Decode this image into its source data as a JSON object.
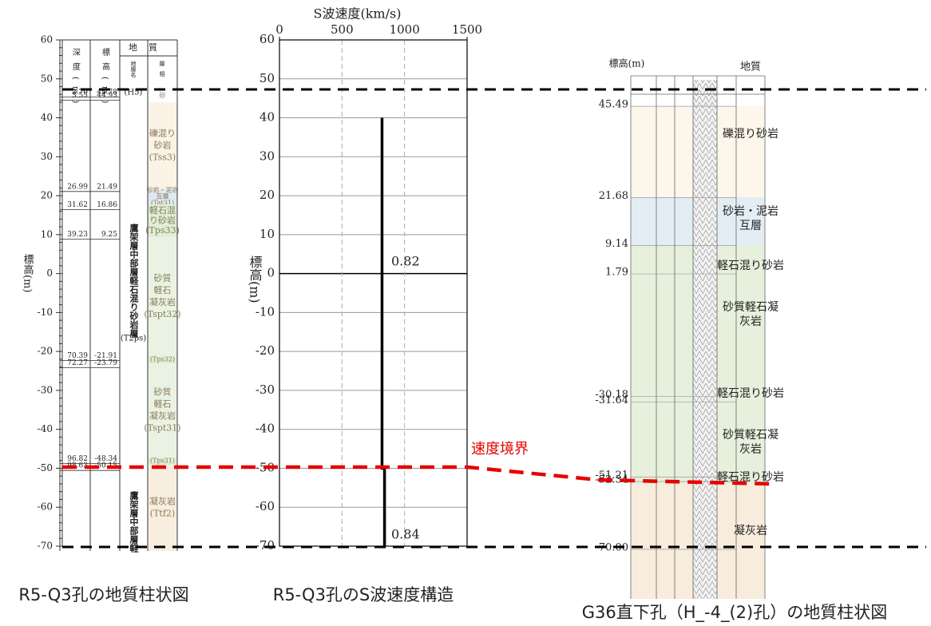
{
  "chart_data": {
    "type": "line",
    "title": "S波速度(km/s)",
    "y_label": "標高(m)",
    "xlim": [
      0,
      1500
    ],
    "xticks": [
      0,
      500,
      1000,
      1500
    ],
    "ylim": [
      -70,
      60
    ],
    "yticks": [
      60,
      50,
      40,
      30,
      20,
      10,
      0,
      -10,
      -20,
      -30,
      -40,
      -50,
      -60,
      -70
    ],
    "grid": true,
    "series": [
      {
        "color": "#000000",
        "x": [
          820,
          820,
          840,
          840
        ],
        "values": [
          40,
          -50,
          -50,
          -70
        ]
      }
    ],
    "annotations": [
      "0.82",
      "0.84"
    ]
  },
  "boundary_label": "速度境界",
  "left_log": {
    "axis_label": "標高(m)",
    "ylim": [
      -70,
      60
    ],
    "yticks": [
      60,
      50,
      40,
      30,
      20,
      10,
      0,
      -10,
      -20,
      -30,
      -40,
      -50,
      -60,
      -70
    ],
    "headers": {
      "depth": "深度(m)",
      "elevation": "標高(m)",
      "geology": "地質",
      "formation": "地層名",
      "facies": "層相"
    },
    "rows": [
      {
        "depth": "2.70",
        "elevation": "45.78"
      },
      {
        "depth": "3.55",
        "elevation": "44.93"
      },
      {
        "depth": "26.99",
        "elevation": "21.49"
      },
      {
        "depth": "31.62",
        "elevation": "16.86"
      },
      {
        "depth": "39.23",
        "elevation": "9.25"
      },
      {
        "depth": "70.39",
        "elevation": "-21.91"
      },
      {
        "depth": "72.27",
        "elevation": "-23.79"
      },
      {
        "depth": "96.82",
        "elevation": "-48.34"
      },
      {
        "depth": "98.63",
        "elevation": "-50.15"
      }
    ],
    "formations": [
      "(H5)",
      "鷹架層中部層軽石混り砂岩層",
      "(T2ps)",
      "鷹架層中部層軽"
    ],
    "layers": [
      {
        "color": "#ffffff",
        "lines": [
          "砂"
        ]
      },
      {
        "color": "#fbf3e6",
        "lines": [
          "礫混り",
          "砂岩",
          "(Tss3)"
        ]
      },
      {
        "color": "#dfe9f1",
        "lines": [
          "砂岩・泥岩",
          "互層",
          "(Tat31)"
        ]
      },
      {
        "color": "#dfeed6",
        "lines": [
          "軽石混",
          "り砂岩",
          "(Tps33)"
        ]
      },
      {
        "color": "#eaf3e3",
        "lines": [
          "砂質",
          "軽石",
          "凝灰岩",
          "(Tspt32)"
        ]
      },
      {
        "color": "#dfeed6",
        "lines": [
          "(Tps32)"
        ]
      },
      {
        "color": "#eaf3e3",
        "lines": [
          "砂質",
          "軽石",
          "凝灰岩",
          "(Tspt31)"
        ]
      },
      {
        "color": "#dfeed6",
        "lines": [
          "(Tps31)"
        ]
      },
      {
        "color": "#f8eedf",
        "lines": [
          "凝灰岩",
          "(Ttf2)"
        ]
      }
    ]
  },
  "right_log": {
    "header_elevation": "標高(m)",
    "header_geology": "地質",
    "elevations": [
      "45.49",
      "21.68",
      "9.14",
      "1.79",
      "-30.18",
      "-31.64",
      "-51.21",
      "-52.34",
      "-70.00"
    ],
    "layers": [
      {
        "color": "#fdf6ea",
        "lines": [
          "礫混り砂岩"
        ]
      },
      {
        "color": "#e3edf4",
        "lines": [
          "砂岩・泥岩",
          "互層"
        ]
      },
      {
        "color": "#e6f0dc",
        "lines": [
          "軽石混り砂岩"
        ]
      },
      {
        "color": "#e6f0dc",
        "lines": [
          "砂質軽石凝",
          "灰岩"
        ]
      },
      {
        "color": "#e6f0dc",
        "lines": [
          "軽石混り砂岩"
        ]
      },
      {
        "color": "#e6f0dc",
        "lines": [
          "砂質軽石凝",
          "灰岩"
        ]
      },
      {
        "color": "#e6f0dc",
        "lines": [
          "軽石混り砂岩"
        ]
      },
      {
        "color": "#f8ecdc",
        "lines": [
          "凝灰岩"
        ]
      }
    ]
  },
  "captions": [
    "R5-Q3孔の地質柱状図",
    "R5-Q3孔のS波速度構造",
    "G36直下孔（H_-4_(2)孔）の地質柱状図"
  ]
}
